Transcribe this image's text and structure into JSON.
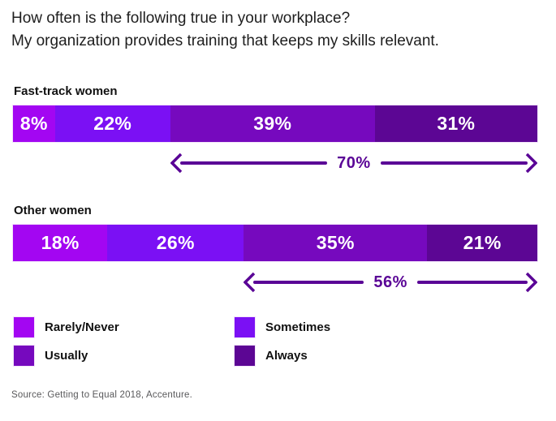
{
  "header": {
    "question": "How often is the following true in your workplace?",
    "statement": "My organization provides training that keeps my skills relevant."
  },
  "source": "Source: Getting to Equal 2018, Accenture.",
  "chart_data": {
    "type": "bar",
    "subtype": "horizontal-stacked-100pct",
    "title": "How often is the following true in your workplace? My organization provides training that keeps my skills relevant.",
    "categories": [
      "Rarely/Never",
      "Sometimes",
      "Usually",
      "Always"
    ],
    "unit": "%",
    "value_range": [
      0,
      100
    ],
    "grid": "off",
    "legend_position": "bottom",
    "series": [
      {
        "name": "Fast-track women",
        "values": [
          8,
          22,
          39,
          31
        ],
        "range_annotation": {
          "label": "70%",
          "value": 70,
          "covers": [
            "Usually",
            "Always"
          ]
        }
      },
      {
        "name": "Other women",
        "values": [
          18,
          26,
          35,
          21
        ],
        "range_annotation": {
          "label": "56%",
          "value": 56,
          "covers": [
            "Usually",
            "Always"
          ]
        }
      }
    ],
    "legend": [
      {
        "label": "Rarely/Never",
        "color": "#A306F2"
      },
      {
        "label": "Sometimes",
        "color": "#7B10F4"
      },
      {
        "label": "Usually",
        "color": "#7609BE"
      },
      {
        "label": "Always",
        "color": "#5C0694"
      }
    ],
    "colors": {
      "arrow": "#5A0596",
      "bar_value_text": "#FFFFFF",
      "title_text": "#1E1E1E",
      "label_text": "#111111",
      "source_text": "#59595B",
      "background": "#FFFFFF"
    }
  }
}
